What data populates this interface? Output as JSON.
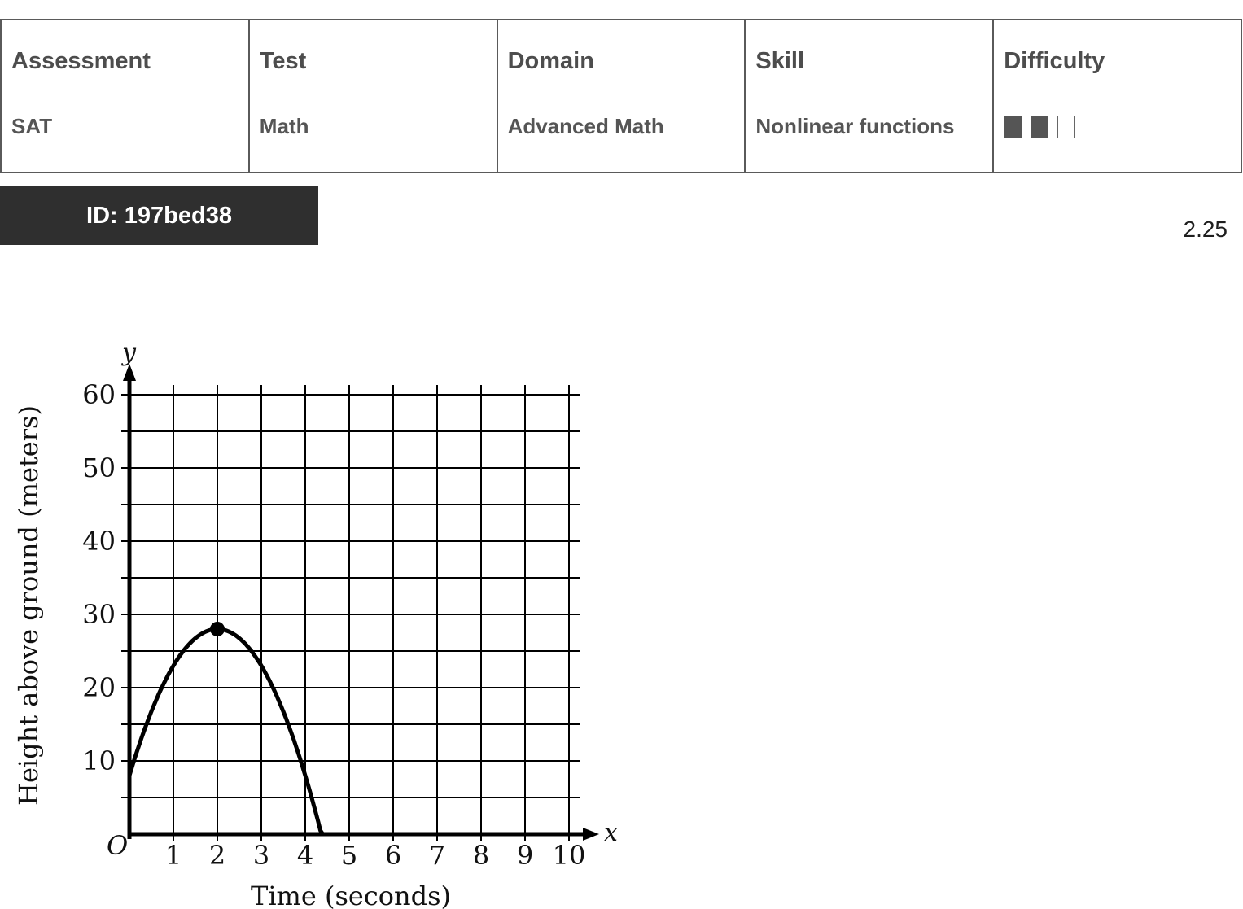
{
  "meta": {
    "columns": [
      {
        "header": "Assessment",
        "value": "SAT"
      },
      {
        "header": "Test",
        "value": "Math"
      },
      {
        "header": "Domain",
        "value": "Advanced Math"
      },
      {
        "header": "Skill",
        "value": "Nonlinear functions"
      },
      {
        "header": "Difficulty",
        "value": ""
      }
    ],
    "difficulty_level": 2,
    "difficulty_max": 3
  },
  "question_id": "ID: 197bed38",
  "version": "2.25",
  "chart_data": {
    "type": "line",
    "title": "",
    "xlabel": "Time (seconds)",
    "ylabel": "Height above ground (meters)",
    "x_axis_letter": "x",
    "y_axis_letter": "y",
    "origin_label": "O",
    "xlim": [
      0,
      10
    ],
    "ylim": [
      0,
      60
    ],
    "xticks": [
      1,
      2,
      3,
      4,
      5,
      6,
      7,
      8,
      9,
      10
    ],
    "yticks": [
      10,
      20,
      30,
      40,
      50,
      60
    ],
    "grid": true,
    "grid_x_step": 1,
    "grid_y_step": 5,
    "curve": {
      "shape": "parabola",
      "vertex": [
        2,
        28
      ],
      "start": [
        0,
        8
      ],
      "end": [
        4.4,
        0
      ]
    },
    "marked_points": [
      [
        2,
        28
      ]
    ]
  }
}
